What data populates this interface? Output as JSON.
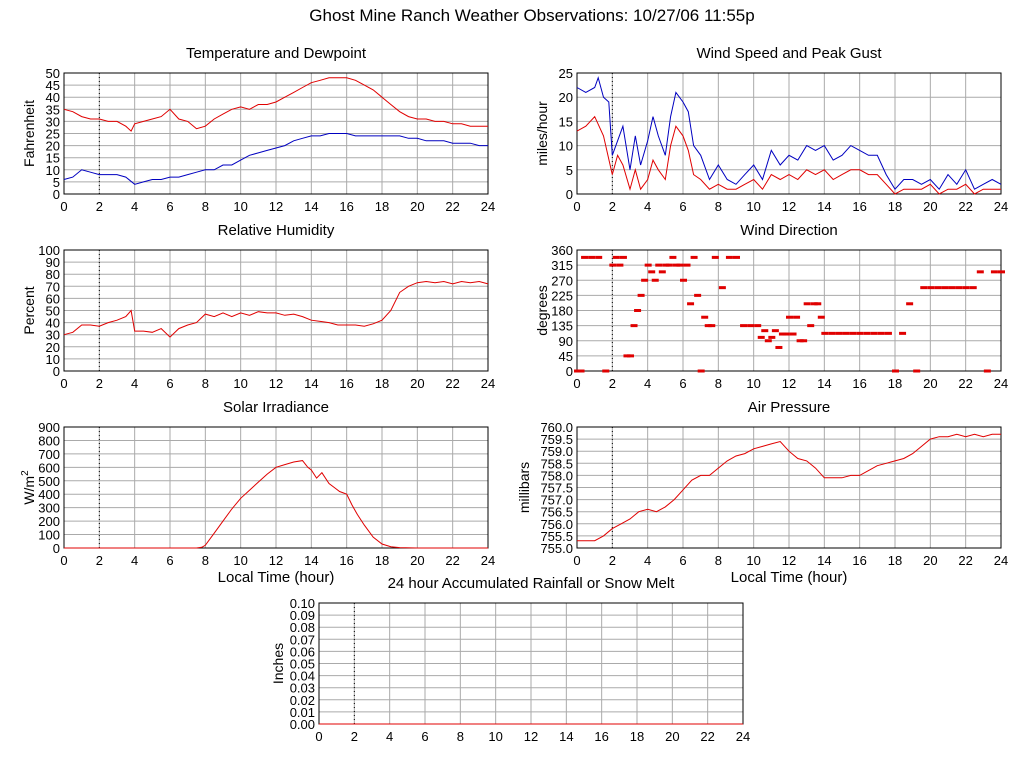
{
  "page": {
    "title": "Ghost Mine Ranch Weather Observations: 10/27/06 11:55p"
  },
  "colors": {
    "primary_series": "#e00000",
    "secondary_series": "#0000c0",
    "grid": "#aaaaaa",
    "frame": "#000000"
  },
  "chart_data": [
    {
      "id": "temp",
      "type": "line",
      "title": "Temperature and Dewpoint",
      "xlabel": "",
      "ylabel": "Fahrenheit",
      "xlim": [
        0,
        24
      ],
      "ylim": [
        0,
        50
      ],
      "xticks": [
        0,
        2,
        4,
        6,
        8,
        10,
        12,
        14,
        16,
        18,
        20,
        22,
        24
      ],
      "yticks": [
        0,
        5,
        10,
        15,
        20,
        25,
        30,
        35,
        40,
        45,
        50
      ],
      "grid": true,
      "series": [
        {
          "color": "#e00000",
          "x": [
            0,
            0.5,
            1,
            1.5,
            2,
            2.5,
            3,
            3.5,
            3.8,
            4,
            4.5,
            5,
            5.5,
            6,
            6.5,
            7,
            7.5,
            8,
            8.5,
            9,
            9.5,
            10,
            10.5,
            11,
            11.5,
            12,
            12.5,
            13,
            13.5,
            14,
            14.5,
            15,
            15.5,
            16,
            16.5,
            17,
            17.5,
            18,
            18.5,
            19,
            19.5,
            20,
            20.5,
            21,
            21.5,
            22,
            22.5,
            23,
            23.5,
            24
          ],
          "y": [
            35,
            34,
            32,
            31,
            31,
            30,
            30,
            28,
            26,
            29,
            30,
            31,
            32,
            35,
            31,
            30,
            27,
            28,
            31,
            33,
            35,
            36,
            35,
            37,
            37,
            38,
            40,
            42,
            44,
            46,
            47,
            48,
            48,
            48,
            47,
            45,
            43,
            40,
            37,
            34,
            32,
            31,
            31,
            30,
            30,
            29,
            29,
            28,
            28,
            28
          ]
        },
        {
          "color": "#0000c0",
          "x": [
            0,
            0.5,
            1,
            1.5,
            2,
            2.5,
            3,
            3.5,
            4,
            4.5,
            5,
            5.5,
            6,
            6.5,
            7,
            7.5,
            8,
            8.5,
            9,
            9.5,
            10,
            10.5,
            11,
            11.5,
            12,
            12.5,
            13,
            13.5,
            14,
            14.5,
            15,
            15.5,
            16,
            16.5,
            17,
            17.5,
            18,
            18.5,
            19,
            19.5,
            20,
            20.5,
            21,
            21.5,
            22,
            22.5,
            23,
            23.5,
            24
          ],
          "y": [
            6,
            7,
            10,
            9,
            8,
            8,
            8,
            7,
            4,
            5,
            6,
            6,
            7,
            7,
            8,
            9,
            10,
            10,
            12,
            12,
            14,
            16,
            17,
            18,
            19,
            20,
            22,
            23,
            24,
            24,
            25,
            25,
            25,
            24,
            24,
            24,
            24,
            24,
            24,
            23,
            23,
            22,
            22,
            22,
            21,
            21,
            21,
            20,
            20
          ]
        }
      ]
    },
    {
      "id": "wind",
      "type": "line",
      "title": "Wind Speed and Peak Gust",
      "xlabel": "",
      "ylabel": "miles/hour",
      "xlim": [
        0,
        24
      ],
      "ylim": [
        0,
        25
      ],
      "xticks": [
        0,
        2,
        4,
        6,
        8,
        10,
        12,
        14,
        16,
        18,
        20,
        22,
        24
      ],
      "yticks": [
        0,
        5,
        10,
        15,
        20,
        25
      ],
      "grid": true,
      "series": [
        {
          "color": "#0000c0",
          "x": [
            0,
            0.5,
            1,
            1.2,
            1.5,
            1.8,
            2,
            2.3,
            2.6,
            3,
            3.3,
            3.6,
            4,
            4.3,
            4.6,
            5,
            5.3,
            5.6,
            6,
            6.3,
            6.6,
            7,
            7.5,
            8,
            8.5,
            9,
            9.5,
            10,
            10.5,
            11,
            11.5,
            12,
            12.5,
            13,
            13.5,
            14,
            14.5,
            15,
            15.5,
            16,
            16.5,
            17,
            17.5,
            18,
            18.5,
            19,
            19.5,
            20,
            20.5,
            21,
            21.5,
            22,
            22.5,
            23,
            23.5,
            24
          ],
          "y": [
            22,
            21,
            22,
            24,
            20,
            19,
            8,
            11,
            14,
            5,
            12,
            6,
            11,
            16,
            12,
            8,
            16,
            21,
            19,
            17,
            10,
            8,
            3,
            6,
            3,
            2,
            4,
            6,
            3,
            9,
            6,
            8,
            7,
            10,
            9,
            10,
            7,
            8,
            10,
            9,
            8,
            8,
            4,
            1,
            3,
            3,
            2,
            3,
            1,
            4,
            2,
            5,
            1,
            2,
            3,
            2
          ]
        },
        {
          "color": "#e00000",
          "x": [
            0,
            0.5,
            1,
            1.5,
            2,
            2.3,
            2.6,
            3,
            3.3,
            3.6,
            4,
            4.3,
            4.6,
            5,
            5.3,
            5.6,
            6,
            6.3,
            6.6,
            7,
            7.5,
            8,
            8.5,
            9,
            9.5,
            10,
            10.5,
            11,
            11.5,
            12,
            12.5,
            13,
            13.5,
            14,
            14.5,
            15,
            15.5,
            16,
            16.5,
            17,
            17.5,
            18,
            18.5,
            19,
            19.5,
            20,
            20.5,
            21,
            21.5,
            22,
            22.5,
            23,
            23.5,
            24
          ],
          "y": [
            13,
            14,
            16,
            12,
            4,
            8,
            6,
            1,
            5,
            1,
            3,
            7,
            5,
            3,
            10,
            14,
            12,
            9,
            4,
            3,
            1,
            2,
            1,
            1,
            2,
            3,
            1,
            4,
            3,
            4,
            3,
            5,
            4,
            5,
            3,
            4,
            5,
            5,
            4,
            4,
            2,
            0,
            1,
            1,
            1,
            2,
            0,
            1,
            1,
            2,
            0,
            1,
            1,
            1
          ]
        }
      ]
    },
    {
      "id": "rh",
      "type": "line",
      "title": "Relative Humidity",
      "xlabel": "",
      "ylabel": "Percent",
      "xlim": [
        0,
        24
      ],
      "ylim": [
        0,
        100
      ],
      "xticks": [
        0,
        2,
        4,
        6,
        8,
        10,
        12,
        14,
        16,
        18,
        20,
        22,
        24
      ],
      "yticks": [
        0,
        10,
        20,
        30,
        40,
        50,
        60,
        70,
        80,
        90,
        100
      ],
      "grid": true,
      "series": [
        {
          "color": "#e00000",
          "x": [
            0,
            0.5,
            1,
            1.5,
            2,
            2.5,
            3,
            3.5,
            3.8,
            4,
            4.5,
            5,
            5.5,
            6,
            6.5,
            7,
            7.5,
            8,
            8.5,
            9,
            9.5,
            10,
            10.5,
            11,
            11.5,
            12,
            12.5,
            13,
            13.5,
            14,
            14.5,
            15,
            15.5,
            16,
            16.5,
            17,
            17.5,
            18,
            18.5,
            19,
            19.5,
            20,
            20.5,
            21,
            21.5,
            22,
            22.5,
            23,
            23.5,
            24
          ],
          "y": [
            30,
            32,
            38,
            38,
            37,
            40,
            42,
            45,
            50,
            33,
            33,
            32,
            35,
            28,
            35,
            38,
            40,
            47,
            45,
            48,
            45,
            48,
            46,
            49,
            48,
            48,
            46,
            47,
            45,
            42,
            41,
            40,
            38,
            38,
            38,
            37,
            39,
            42,
            50,
            65,
            70,
            73,
            74,
            73,
            74,
            72,
            74,
            73,
            74,
            72
          ]
        }
      ]
    },
    {
      "id": "wdir",
      "type": "scatter",
      "title": "Wind Direction",
      "xlabel": "",
      "ylabel": "degrees",
      "xlim": [
        0,
        24
      ],
      "ylim": [
        0,
        360
      ],
      "xticks": [
        0,
        2,
        4,
        6,
        8,
        10,
        12,
        14,
        16,
        18,
        20,
        22,
        24
      ],
      "yticks": [
        0,
        45,
        90,
        135,
        180,
        225,
        270,
        315,
        360
      ],
      "grid": true,
      "series": [
        {
          "color": "#e00000",
          "x": [
            0,
            0.2,
            0.4,
            0.8,
            1.2,
            1.6,
            2,
            2.2,
            2.4,
            2.6,
            2.8,
            3,
            3.2,
            3.4,
            3.6,
            3.8,
            4,
            4.2,
            4.4,
            4.6,
            4.8,
            5,
            5.2,
            5.4,
            5.6,
            5.8,
            6,
            6.2,
            6.4,
            6.6,
            6.8,
            7,
            7.2,
            7.4,
            7.6,
            7.8,
            8.2,
            8.6,
            9,
            9.4,
            9.8,
            10.2,
            10.4,
            10.6,
            10.8,
            11,
            11.2,
            11.4,
            11.6,
            11.8,
            12,
            12.2,
            12.4,
            12.6,
            12.8,
            13,
            13.2,
            13.4,
            13.6,
            13.8,
            14,
            14.4,
            14.8,
            15.2,
            15.6,
            16,
            16.4,
            16.8,
            17.2,
            17.6,
            18,
            18.4,
            18.8,
            19.2,
            19.6,
            20,
            20.4,
            20.8,
            21.2,
            21.6,
            22,
            22.4,
            22.8,
            23.2,
            23.6,
            24
          ],
          "y": [
            0,
            0,
            338,
            338,
            338,
            0,
            315,
            338,
            315,
            338,
            45,
            45,
            135,
            180,
            225,
            270,
            315,
            295,
            270,
            315,
            295,
            315,
            315,
            338,
            315,
            315,
            270,
            315,
            200,
            338,
            225,
            0,
            160,
            135,
            135,
            338,
            248,
            338,
            338,
            135,
            135,
            135,
            100,
            120,
            90,
            100,
            120,
            70,
            110,
            110,
            160,
            110,
            160,
            90,
            90,
            200,
            135,
            200,
            200,
            160,
            112,
            112,
            112,
            112,
            112,
            112,
            112,
            112,
            112,
            112,
            0,
            112,
            200,
            0,
            248,
            248,
            248,
            248,
            248,
            248,
            248,
            248,
            295,
            0,
            295,
            295
          ]
        }
      ]
    },
    {
      "id": "solar",
      "type": "line",
      "title": "Solar Irradiance",
      "xlabel": "Local Time (hour)",
      "ylabel": "W/m",
      "ylabel_sup": "2",
      "xlim": [
        0,
        24
      ],
      "ylim": [
        0,
        900
      ],
      "xticks": [
        0,
        2,
        4,
        6,
        8,
        10,
        12,
        14,
        16,
        18,
        20,
        22,
        24
      ],
      "yticks": [
        0,
        100,
        200,
        300,
        400,
        500,
        600,
        700,
        800,
        900
      ],
      "grid": true,
      "series": [
        {
          "color": "#e00000",
          "x": [
            0,
            2,
            4,
            6,
            7.5,
            7.8,
            8,
            8.5,
            9,
            9.5,
            10,
            10.5,
            11,
            11.5,
            12,
            12.5,
            13,
            13.5,
            13.8,
            14,
            14.3,
            14.6,
            15,
            15.3,
            15.6,
            16,
            16.3,
            16.6,
            17,
            17.5,
            18,
            18.5,
            19,
            20,
            22,
            24
          ],
          "y": [
            0,
            0,
            0,
            0,
            0,
            5,
            20,
            110,
            200,
            290,
            370,
            430,
            490,
            550,
            600,
            620,
            640,
            650,
            600,
            580,
            520,
            560,
            480,
            450,
            420,
            400,
            320,
            250,
            170,
            80,
            30,
            10,
            3,
            0,
            0,
            0
          ]
        }
      ]
    },
    {
      "id": "pressure",
      "type": "line",
      "title": "Air Pressure",
      "xlabel": "Local Time (hour)",
      "ylabel": "millibars",
      "xlim": [
        0,
        24
      ],
      "ylim": [
        755.0,
        760.0
      ],
      "xticks": [
        0,
        2,
        4,
        6,
        8,
        10,
        12,
        14,
        16,
        18,
        20,
        22,
        24
      ],
      "yticks": [
        "755.0",
        "755.5",
        "756.0",
        "756.5",
        "757.0",
        "757.5",
        "758.0",
        "758.5",
        "759.0",
        "759.5",
        "760.0"
      ],
      "grid": true,
      "series": [
        {
          "color": "#e00000",
          "x": [
            0,
            1,
            1.5,
            2,
            2.5,
            3,
            3.5,
            4,
            4.5,
            5,
            5.5,
            6,
            6.5,
            7,
            7.5,
            8,
            8.5,
            9,
            9.5,
            10,
            10.5,
            11,
            11.5,
            12,
            12.5,
            13,
            13.5,
            14,
            14.5,
            15,
            15.5,
            16,
            16.5,
            17,
            17.5,
            18,
            18.5,
            19,
            19.5,
            20,
            20.5,
            21,
            21.5,
            22,
            22.5,
            23,
            23.5,
            24
          ],
          "y": [
            755.3,
            755.3,
            755.5,
            755.8,
            756.0,
            756.2,
            756.5,
            756.6,
            756.5,
            756.7,
            757.0,
            757.4,
            757.8,
            758.0,
            758.0,
            758.3,
            758.6,
            758.8,
            758.9,
            759.1,
            759.2,
            759.3,
            759.4,
            759.0,
            758.7,
            758.6,
            758.3,
            757.9,
            757.9,
            757.9,
            758.0,
            758.0,
            758.2,
            758.4,
            758.5,
            758.6,
            758.7,
            758.9,
            759.2,
            759.5,
            759.6,
            759.6,
            759.7,
            759.6,
            759.7,
            759.6,
            759.7,
            759.7
          ]
        }
      ]
    },
    {
      "id": "rain",
      "type": "line",
      "title": "24 hour Accumulated Rainfall or Snow Melt",
      "xlabel": "",
      "ylabel": "Inches",
      "xlim": [
        0,
        24
      ],
      "ylim": [
        0,
        0.1
      ],
      "xticks": [
        0,
        2,
        4,
        6,
        8,
        10,
        12,
        14,
        16,
        18,
        20,
        22,
        24
      ],
      "yticks": [
        "0.00",
        "0.01",
        "0.02",
        "0.03",
        "0.04",
        "0.05",
        "0.06",
        "0.07",
        "0.08",
        "0.09",
        "0.10"
      ],
      "grid": true,
      "series": [
        {
          "color": "#e00000",
          "x": [
            0,
            24
          ],
          "y": [
            0,
            0
          ]
        }
      ]
    }
  ]
}
